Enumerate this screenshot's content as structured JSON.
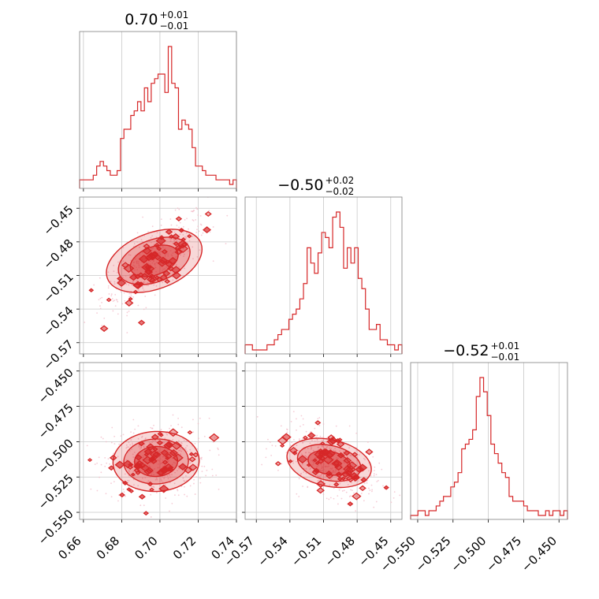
{
  "chart_data": {
    "type": "corner",
    "color": "#d62728",
    "grid": true,
    "panel_titles": [
      {
        "value": "0.70",
        "upper": "+0.01",
        "lower": "−0.01"
      },
      {
        "value": "−0.50",
        "upper": "+0.02",
        "lower": "−0.02"
      },
      {
        "value": "−0.52",
        "upper": "+0.01",
        "lower": "−0.01"
      }
    ],
    "param_ranges": [
      [
        0.658,
        0.74
      ],
      [
        -0.58,
        -0.44
      ],
      [
        -0.555,
        -0.444
      ]
    ],
    "ticks": [
      {
        "values": [
          0.66,
          0.68,
          0.7,
          0.72,
          0.74
        ],
        "labels": [
          "0.66",
          "0.68",
          "0.70",
          "0.72",
          "0.74"
        ]
      },
      {
        "values": [
          -0.57,
          -0.54,
          -0.51,
          -0.48,
          -0.45
        ],
        "labels": [
          "−0.57",
          "−0.54",
          "−0.51",
          "−0.48",
          "−0.45"
        ]
      },
      {
        "values": [
          -0.55,
          -0.525,
          -0.5,
          -0.475,
          -0.45
        ],
        "labels": [
          "−0.550",
          "−0.525",
          "−0.500",
          "−0.475",
          "−0.450"
        ]
      }
    ],
    "histograms": [
      {
        "param": 0,
        "counts": [
          1,
          1,
          1,
          1,
          2,
          4,
          5,
          4,
          3,
          2,
          2,
          3,
          10,
          12,
          12,
          15,
          16,
          18,
          16,
          21,
          18,
          22,
          23,
          24,
          24,
          20,
          30,
          22,
          21,
          12,
          14,
          13,
          12,
          8,
          4,
          4,
          3,
          2,
          2,
          2,
          1,
          1,
          1,
          1,
          0,
          1
        ]
      },
      {
        "param": 1,
        "counts": [
          1,
          1,
          0,
          0,
          0,
          0,
          1,
          1,
          2,
          3,
          4,
          4,
          6,
          7,
          8,
          10,
          13,
          20,
          17,
          15,
          19,
          23,
          22,
          20,
          26,
          27,
          24,
          16,
          20,
          17,
          20,
          14,
          12,
          8,
          4,
          4,
          5,
          2,
          2,
          1,
          1,
          0,
          1
        ]
      },
      {
        "param": 2,
        "counts": [
          0,
          0,
          1,
          1,
          0,
          1,
          1,
          2,
          3,
          4,
          4,
          6,
          7,
          9,
          14,
          15,
          16,
          18,
          25,
          29,
          26,
          21,
          15,
          13,
          11,
          9,
          8,
          4,
          3,
          3,
          3,
          2,
          1,
          1,
          1,
          0,
          0,
          1,
          0,
          1,
          1,
          0,
          1
        ]
      }
    ],
    "joints": [
      {
        "x_param": 0,
        "y_param": 1,
        "center": [
          0.697,
          -0.497
        ],
        "sigma": [
          0.011,
          0.017
        ],
        "rho": 0.75
      },
      {
        "x_param": 0,
        "y_param": 2,
        "center": [
          0.698,
          -0.514
        ],
        "sigma": [
          0.011,
          0.011
        ],
        "rho": 0.1
      },
      {
        "x_param": 1,
        "y_param": 2,
        "center": [
          -0.505,
          -0.515
        ],
        "sigma": [
          0.017,
          0.01
        ],
        "rho": -0.5
      }
    ]
  }
}
